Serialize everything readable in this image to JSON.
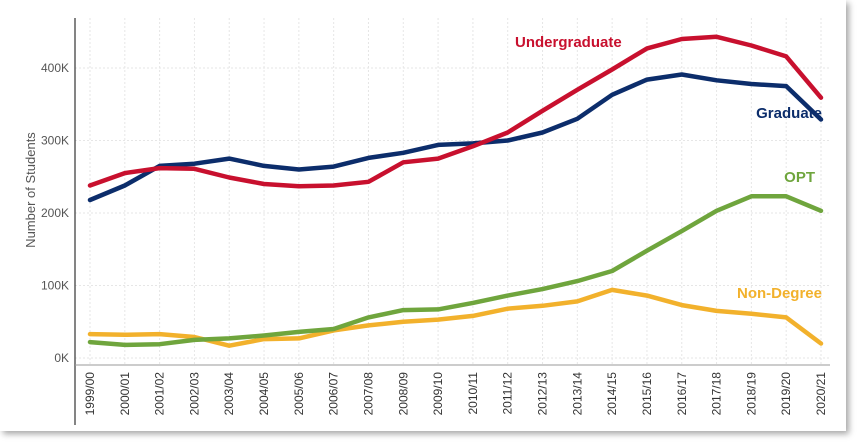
{
  "chart_data": {
    "type": "line",
    "title": "",
    "xlabel": "",
    "ylabel": "Number of Students",
    "ylim": [
      0,
      460000
    ],
    "grid": true,
    "legend": "direct labels",
    "x": [
      "1999/00",
      "2000/01",
      "2001/02",
      "2002/03",
      "2003/04",
      "2004/05",
      "2005/06",
      "2006/07",
      "2007/08",
      "2008/09",
      "2009/10",
      "2010/11",
      "2011/12",
      "2012/13",
      "2013/14",
      "2014/15",
      "2015/16",
      "2016/17",
      "2017/18",
      "2018/19",
      "2019/20",
      "2020/21"
    ],
    "yticks": [
      {
        "value": 0,
        "label": "0K"
      },
      {
        "value": 100000,
        "label": "100K"
      },
      {
        "value": 200000,
        "label": "200K"
      },
      {
        "value": 300000,
        "label": "300K"
      },
      {
        "value": 400000,
        "label": "400K"
      }
    ],
    "series": [
      {
        "name": "Undergraduate",
        "color": "#c8102e",
        "values": [
          238000,
          255000,
          262000,
          261000,
          249000,
          240000,
          237000,
          238000,
          243000,
          270000,
          275000,
          292000,
          311000,
          341000,
          370000,
          398000,
          427000,
          440000,
          443000,
          431000,
          416000,
          359000
        ]
      },
      {
        "name": "Graduate",
        "color": "#0c2d6b",
        "values": [
          218000,
          238000,
          265000,
          268000,
          275000,
          265000,
          260000,
          264000,
          276000,
          283000,
          294000,
          296000,
          300000,
          311000,
          330000,
          363000,
          384000,
          391000,
          383000,
          378000,
          375000,
          329000
        ]
      },
      {
        "name": "OPT",
        "color": "#6fa53d",
        "values": [
          22000,
          18000,
          19000,
          25000,
          27000,
          31000,
          36000,
          40000,
          56000,
          66000,
          67000,
          76000,
          86000,
          95000,
          106000,
          120000,
          148000,
          175000,
          203000,
          223000,
          223000,
          203000
        ]
      },
      {
        "name": "Non-Degree",
        "color": "#f2b12c",
        "values": [
          33000,
          32000,
          33000,
          29000,
          17000,
          26000,
          27000,
          38000,
          45000,
          50000,
          53000,
          58000,
          68000,
          72000,
          78000,
          94000,
          86000,
          73000,
          65000,
          61000,
          56000,
          20000
        ]
      }
    ]
  }
}
